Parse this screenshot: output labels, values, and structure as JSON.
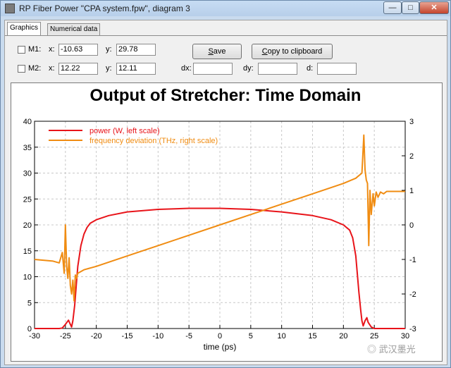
{
  "window": {
    "title": "RP Fiber Power \"CPA system.fpw\", diagram 3",
    "buttons": {
      "minimize": "—",
      "maximize": "□",
      "close": "✕"
    }
  },
  "tabs": [
    {
      "label": "Graphics",
      "active": true
    },
    {
      "label": "Numerical data",
      "active": false
    }
  ],
  "markers": {
    "m1": {
      "label": "M1:",
      "x_label": "x:",
      "x_value": "-10.63",
      "y_label": "y:",
      "y_value": "29.78"
    },
    "m2": {
      "label": "M2:",
      "x_label": "x:",
      "x_value": "12.22",
      "y_label": "y:",
      "y_value": "12.11"
    },
    "dx_label": "dx:",
    "dx_value": "",
    "dy_label": "dy:",
    "dy_value": "",
    "d_label": "d:",
    "d_value": ""
  },
  "actions": {
    "save_label_u": "S",
    "save_label_rest": "ave",
    "copy_label_u": "C",
    "copy_label_rest": "opy to clipboard"
  },
  "watermark": "武汉墨光",
  "chart_data": {
    "type": "line",
    "title": "Output of Stretcher: Time Domain",
    "xlabel": "time (ps)",
    "xlim": [
      -30,
      30
    ],
    "xticks": [
      -30,
      -25,
      -20,
      -15,
      -10,
      -5,
      0,
      5,
      10,
      15,
      20,
      25,
      30
    ],
    "ylim_left": [
      0,
      40
    ],
    "yticks_left": [
      0,
      5,
      10,
      15,
      20,
      25,
      30,
      35,
      40
    ],
    "ylim_right": [
      -3,
      3
    ],
    "yticks_right": [
      -3,
      -2,
      -1,
      0,
      1,
      2,
      3
    ],
    "grid": true,
    "legend_position": "top-left",
    "series": [
      {
        "name": "power (W, left scale)",
        "axis": "left",
        "color": "#e8141a",
        "x": [
          -30,
          -26,
          -25.5,
          -25,
          -24.5,
          -24.2,
          -24,
          -23.8,
          -23.5,
          -23.2,
          -23,
          -22.5,
          -22,
          -21.5,
          -21,
          -20,
          -18,
          -15,
          -10,
          -5,
          0,
          5,
          10,
          15,
          18,
          20,
          21,
          21.5,
          22,
          22.5,
          22.8,
          23,
          23.2,
          23.5,
          23.8,
          24,
          24.5,
          25,
          26,
          30
        ],
        "y": [
          0,
          0,
          0.1,
          0.8,
          1.6,
          0.8,
          0.3,
          1.5,
          4.5,
          9,
          12,
          16,
          18.2,
          19.5,
          20.3,
          21,
          21.8,
          22.5,
          23,
          23.2,
          23.2,
          23,
          22.5,
          21.8,
          21,
          20,
          19,
          17.5,
          14,
          7,
          3.5,
          1.5,
          0.5,
          1.5,
          2.1,
          1.2,
          0.3,
          0,
          0,
          0
        ]
      },
      {
        "name": "frequency deviation (THz, right scale)",
        "axis": "right",
        "color": "#f08c12",
        "x": [
          -30,
          -27,
          -26,
          -25.5,
          -25.2,
          -25,
          -24.8,
          -24.6,
          -24.4,
          -24.2,
          -24,
          -23.8,
          -23.6,
          -23.4,
          -23.2,
          -23,
          -22,
          -20,
          -15,
          -10,
          -5,
          0,
          5,
          10,
          15,
          20,
          22,
          23,
          23.3,
          23.5,
          23.7,
          23.9,
          24.1,
          24.3,
          24.5,
          24.8,
          25,
          25.3,
          25.6,
          26,
          26.5,
          27,
          28,
          30
        ],
        "y": [
          -1.0,
          -1.05,
          -1.1,
          -0.8,
          -1.4,
          0.0,
          -1.2,
          -1.55,
          -0.95,
          -1.75,
          -2.0,
          -1.6,
          -2.2,
          -1.45,
          -1.55,
          -1.4,
          -1.3,
          -1.2,
          -0.9,
          -0.6,
          -0.3,
          0.0,
          0.3,
          0.6,
          0.9,
          1.2,
          1.35,
          1.5,
          2.6,
          1.6,
          1.3,
          1.2,
          -0.6,
          1.0,
          0.3,
          0.9,
          0.55,
          0.95,
          0.8,
          0.95,
          0.9,
          0.97,
          0.97,
          0.97
        ]
      }
    ]
  }
}
